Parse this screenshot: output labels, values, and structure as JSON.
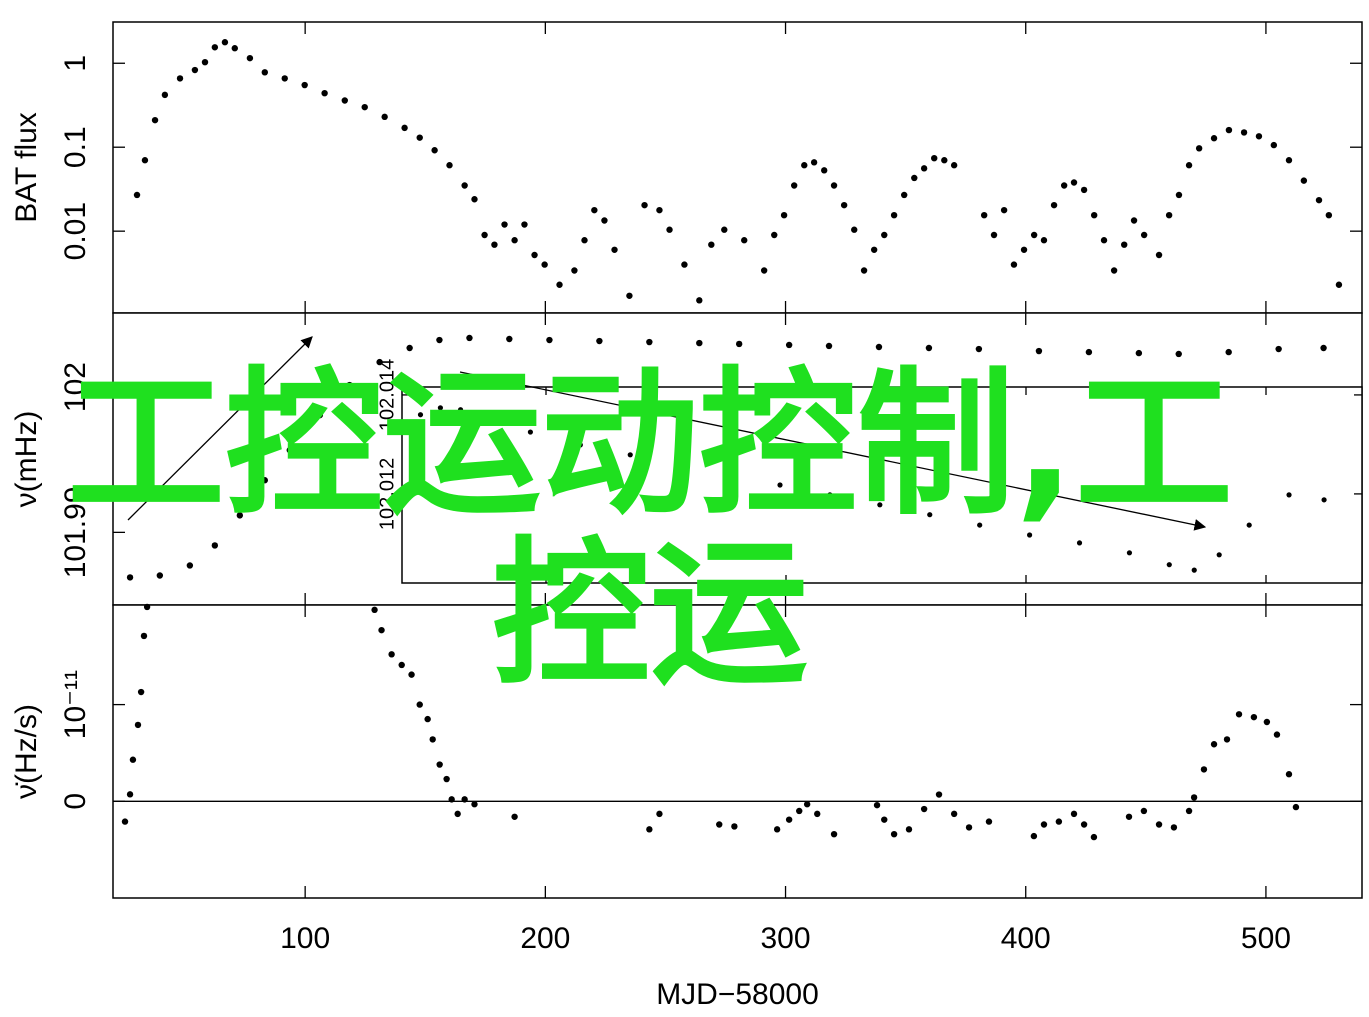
{
  "chart_data": [
    {
      "type": "scatter",
      "ylabel": "BAT flux",
      "yscale": "log",
      "color": "#000000",
      "xlim": [
        20,
        540
      ],
      "xticks": [
        100,
        200,
        300,
        400,
        500
      ],
      "ylim": [
        0.00106,
        3.1
      ],
      "yticks": [
        0.01,
        0.1,
        1
      ],
      "x": [
        30,
        33.3,
        37.5,
        41.6,
        47.9,
        54.1,
        58.3,
        62.4,
        66.6,
        70.7,
        77,
        83.2,
        91.5,
        99.8,
        108.1,
        116.5,
        124.8,
        133.1,
        141.4,
        147.7,
        153.9,
        160.1,
        166.4,
        170.5,
        174.7,
        178.8,
        183,
        187.2,
        191.3,
        195.5,
        199.7,
        205.9,
        212.1,
        216.3,
        220.4,
        224.6,
        228.8,
        235,
        241.3,
        247.5,
        251.7,
        257.9,
        264.1,
        269.1,
        274.5,
        282.8,
        291.1,
        295.3,
        299.4,
        303.6,
        307.8,
        311.9,
        316.1,
        320.2,
        324.4,
        328.6,
        332.7,
        336.9,
        341.1,
        345.2,
        349.4,
        353.6,
        357.7,
        361.9,
        366.1,
        370.2,
        382.7,
        386.8,
        391,
        395.1,
        399.3,
        403.5,
        407.6,
        411.8,
        416,
        420.1,
        424.3,
        428.5,
        432.6,
        436.8,
        441,
        445.1,
        449.3,
        455.5,
        459.7,
        463.8,
        468,
        472.2,
        478.4,
        484.6,
        490.9,
        497.1,
        503.3,
        509.6,
        515.8,
        522.1,
        526.2,
        530.4
      ],
      "values": [
        0.027,
        0.07,
        0.21,
        0.42,
        0.66,
        0.83,
        1.03,
        1.55,
        1.78,
        1.51,
        1.15,
        0.78,
        0.66,
        0.55,
        0.44,
        0.36,
        0.3,
        0.23,
        0.17,
        0.13,
        0.092,
        0.061,
        0.035,
        0.024,
        0.009,
        0.0069,
        0.012,
        0.0078,
        0.012,
        0.0052,
        0.004,
        0.0023,
        0.0034,
        0.0078,
        0.0178,
        0.0134,
        0.006,
        0.0017,
        0.0204,
        0.0178,
        0.0104,
        0.004,
        0.0015,
        0.0069,
        0.0104,
        0.0078,
        0.0034,
        0.009,
        0.0155,
        0.035,
        0.061,
        0.066,
        0.053,
        0.035,
        0.0204,
        0.0104,
        0.0034,
        0.006,
        0.009,
        0.0155,
        0.027,
        0.043,
        0.056,
        0.074,
        0.07,
        0.061,
        0.0155,
        0.009,
        0.0178,
        0.004,
        0.006,
        0.009,
        0.0078,
        0.0204,
        0.035,
        0.038,
        0.031,
        0.0155,
        0.0078,
        0.0034,
        0.0069,
        0.0134,
        0.009,
        0.0052,
        0.0155,
        0.027,
        0.061,
        0.097,
        0.128,
        0.16,
        0.15,
        0.135,
        0.106,
        0.07,
        0.04,
        0.0234,
        0.0155,
        0.0023
      ]
    },
    {
      "type": "scatter",
      "ylabel": "ν(mHz)",
      "color": "#000000",
      "xlim": [
        20,
        540
      ],
      "xticks": [
        100,
        200,
        300,
        400,
        500
      ],
      "ylim": [
        101.985,
        102.0051
      ],
      "yticks": [
        101.99,
        102
      ],
      "x": [
        27.1,
        39.5,
        52,
        62.4,
        72.8,
        83.2,
        93.6,
        106.1,
        118.5,
        131,
        143.5,
        155.9,
        168.4,
        185,
        201.7,
        222.5,
        243.3,
        264.1,
        280.7,
        301.5,
        318.1,
        338.9,
        359.7,
        380.5,
        405.5,
        426.3,
        447.1,
        463.7,
        484.5,
        505.3,
        524
      ],
      "values": [
        101.9869,
        101.98703,
        101.98772,
        101.9891,
        101.99117,
        101.99359,
        101.99566,
        101.99807,
        102.00014,
        102.00172,
        102.00269,
        102.00324,
        102.00338,
        102.00331,
        102.00324,
        102.00317,
        102.0031,
        102.00303,
        102.00297,
        102.0029,
        102.00283,
        102.00276,
        102.00269,
        102.00262,
        102.00248,
        102.00241,
        102.00234,
        102.00228,
        102.00241,
        102.00262,
        102.00269
      ]
    },
    {
      "type": "scatter",
      "inset": true,
      "color": "#000000",
      "xlim": [
        140,
        540
      ],
      "xticks": [
        200,
        300,
        400,
        500
      ],
      "ylim": [
        102.0102,
        102.01416
      ],
      "yticks": [
        102.012,
        102.014
      ],
      "x": [
        140.2,
        147.7,
        156,
        164.4,
        176.8,
        193.5,
        214.3,
        235.1,
        255.9,
        276.7,
        297.5,
        318.3,
        339.1,
        359.9,
        380.7,
        401.5,
        422.3,
        443.1,
        459.7,
        470.1,
        480.5,
        493,
        509.6,
        524.2
      ],
      "values": [
        102.01329,
        102.0136,
        102.01374,
        102.0137,
        102.01349,
        102.01325,
        102.01299,
        102.01279,
        102.01259,
        102.01238,
        102.01218,
        102.01198,
        102.01178,
        102.01158,
        102.01137,
        102.01117,
        102.01101,
        102.01081,
        102.01057,
        102.01046,
        102.01077,
        102.01137,
        102.01198,
        102.01188
      ]
    },
    {
      "type": "scatter",
      "ylabel": "ν̇(Hz/s)",
      "xlabel": "MJD−58000",
      "show_xticklabels": true,
      "zero_line": true,
      "color": "#000000",
      "xlim": [
        20,
        540
      ],
      "xticks": [
        100,
        200,
        300,
        400,
        500
      ],
      "ylim": [
        -1e-11,
        2.03e-11
      ],
      "yticks": [
        0,
        {
          "value": 1e-11,
          "label": "10⁻¹¹"
        }
      ],
      "x": [
        25,
        27.1,
        28.3,
        30.4,
        31.7,
        32.9,
        34.2,
        128.9,
        131.8,
        136,
        140.2,
        144.3,
        147.7,
        151,
        153.1,
        156,
        158.9,
        161,
        163.5,
        166.4,
        170.5,
        187.2,
        243.3,
        247.5,
        272.4,
        278.7,
        296.5,
        301.5,
        305.7,
        309,
        313.2,
        320.2,
        338.1,
        341.1,
        345.2,
        351.4,
        357.7,
        363.9,
        370.2,
        376.4,
        384.7,
        403.4,
        407.6,
        413.8,
        420.1,
        424.3,
        428.4,
        443,
        449.2,
        455.5,
        461.7,
        468,
        470.1,
        474.2,
        478.4,
        483.8,
        488.8,
        495,
        500.4,
        504.6,
        509.6,
        512.5
      ],
      "values": [
        -2.1e-12,
        7.2e-13,
        4.3e-12,
        7.9e-12,
        1.13e-11,
        1.71e-11,
        2.01e-11,
        1.98e-11,
        1.77e-11,
        1.52e-11,
        1.41e-11,
        1.31e-11,
        1e-11,
        8.5e-12,
        6.4e-12,
        3.8e-12,
        2.3e-12,
        2e-13,
        -1.3e-12,
        2e-13,
        -3e-13,
        -1.6e-12,
        -2.9e-12,
        -1.3e-12,
        -2.4e-12,
        -2.6e-12,
        -2.9e-12,
        -1.9e-12,
        -1e-12,
        -3e-13,
        -1.3e-12,
        -3.4e-12,
        -4e-13,
        -1.9e-12,
        -3.4e-12,
        -2.9e-12,
        -8e-13,
        7e-13,
        -1.3e-12,
        -2.7e-12,
        -2.1e-12,
        -3.6e-12,
        -2.4e-12,
        -2.1e-12,
        -1.3e-12,
        -2.4e-12,
        -3.7e-12,
        -1.6e-12,
        -1e-12,
        -2.4e-12,
        -2.7e-12,
        -1e-12,
        4e-13,
        3.3e-12,
        5.9e-12,
        6.4e-12,
        9e-12,
        8.7e-12,
        8.2e-12,
        6.9e-12,
        2.8e-12,
        -6e-13
      ]
    }
  ],
  "watermark": "工控运动控制,工控运"
}
